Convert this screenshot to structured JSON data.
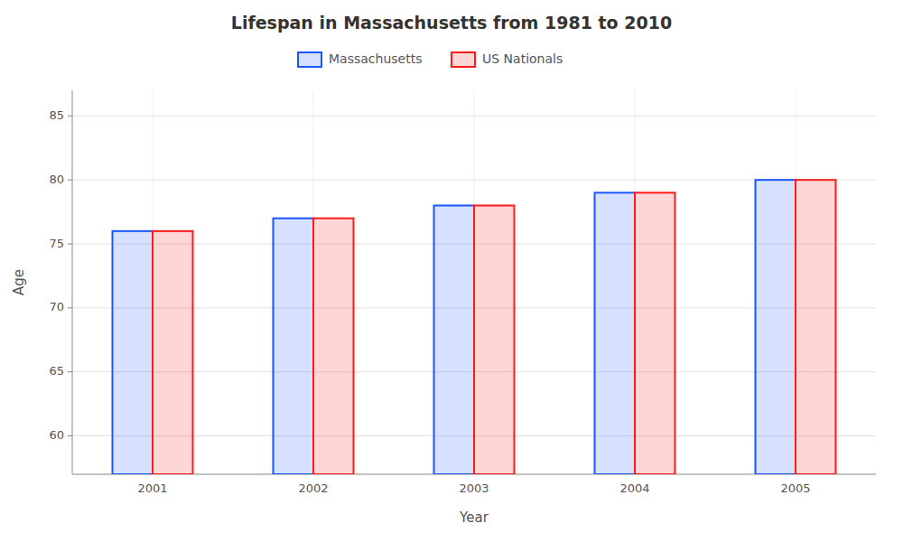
{
  "chart_data": {
    "type": "bar",
    "title": "Lifespan in Massachusetts from 1981 to 2010",
    "xlabel": "Year",
    "ylabel": "Age",
    "categories": [
      "2001",
      "2002",
      "2003",
      "2004",
      "2005"
    ],
    "series": [
      {
        "name": "Massachusetts",
        "color": "#1a56ff",
        "values": [
          76,
          77,
          78,
          79,
          80
        ]
      },
      {
        "name": "US Nationals",
        "color": "#ff1a1a",
        "values": [
          76,
          77,
          78,
          79,
          80
        ]
      }
    ],
    "ylim": [
      57,
      87
    ],
    "yticks": [
      60,
      65,
      70,
      75,
      80,
      85
    ],
    "grid": true,
    "legend": "top"
  }
}
